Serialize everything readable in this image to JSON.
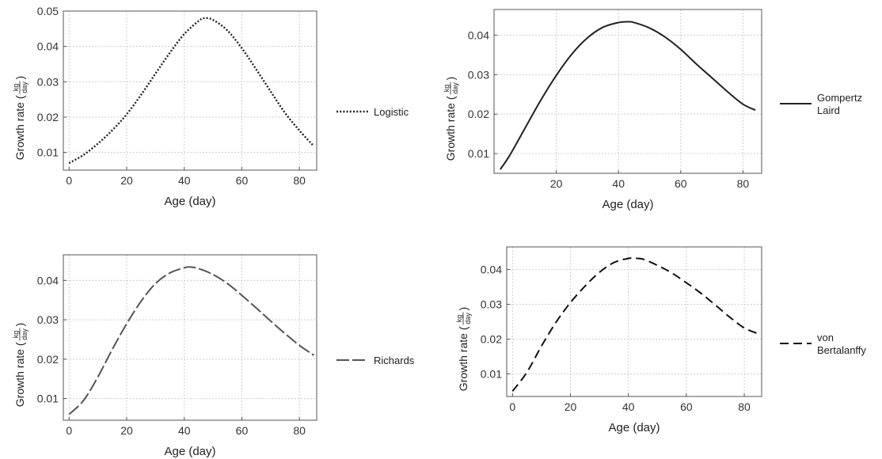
{
  "chart_data": [
    {
      "type": "line",
      "xlabel": "Age (day)",
      "ylabel_prefix": "Growth rate (",
      "ylabel_num": "kg",
      "ylabel_den": "day",
      "ylabel_suffix": ")",
      "xlim": [
        -2,
        86
      ],
      "ylim": [
        0.005,
        0.05
      ],
      "xticks": [
        0,
        20,
        40,
        60,
        80
      ],
      "yticks": [
        0.01,
        0.02,
        0.03,
        0.04,
        0.05
      ],
      "grid": true,
      "legend_position": "right",
      "series": [
        {
          "name": "Logistic",
          "line_style": "dotted",
          "color": "#222222",
          "x": [
            0,
            5,
            10,
            15,
            20,
            25,
            30,
            35,
            40,
            45,
            47,
            50,
            55,
            60,
            65,
            70,
            75,
            80,
            85
          ],
          "y": [
            0.007,
            0.0093,
            0.0125,
            0.0163,
            0.0208,
            0.0263,
            0.0323,
            0.0382,
            0.0435,
            0.0472,
            0.048,
            0.0475,
            0.0445,
            0.0395,
            0.0335,
            0.0273,
            0.0212,
            0.0162,
            0.0118
          ]
        }
      ]
    },
    {
      "type": "line",
      "xlabel": "Age (day)",
      "ylabel_prefix": "Growth rate (",
      "ylabel_num": "kg",
      "ylabel_den": "day",
      "ylabel_suffix": ")",
      "xlim": [
        0,
        86
      ],
      "ylim": [
        0.005,
        0.0465
      ],
      "xticks": [
        20,
        40,
        60,
        80
      ],
      "yticks": [
        0.01,
        0.02,
        0.03,
        0.04
      ],
      "grid": true,
      "legend_position": "right",
      "series": [
        {
          "name": "Gompertz Laird",
          "name_lines": [
            "Gompertz",
            "Laird"
          ],
          "line_style": "solid",
          "color": "#222222",
          "x": [
            2,
            5,
            10,
            15,
            20,
            25,
            30,
            35,
            40,
            43,
            45,
            50,
            55,
            60,
            65,
            70,
            75,
            80,
            84
          ],
          "y": [
            0.006,
            0.0095,
            0.0165,
            0.0235,
            0.0298,
            0.0352,
            0.0393,
            0.042,
            0.0432,
            0.0434,
            0.0432,
            0.0418,
            0.0395,
            0.0364,
            0.0327,
            0.0292,
            0.0257,
            0.0225,
            0.021
          ]
        }
      ]
    },
    {
      "type": "line",
      "xlabel": "Age (day)",
      "ylabel_prefix": "Growth rate (",
      "ylabel_num": "kg",
      "ylabel_den": "day",
      "ylabel_suffix": ")",
      "xlim": [
        -2,
        86
      ],
      "ylim": [
        0.0045,
        0.0465
      ],
      "xticks": [
        0,
        20,
        40,
        60,
        80
      ],
      "yticks": [
        0.01,
        0.02,
        0.03,
        0.04
      ],
      "grid": true,
      "legend_position": "right",
      "series": [
        {
          "name": "Richards",
          "line_style": "long-dash",
          "color": "#555555",
          "x": [
            0,
            5,
            10,
            15,
            20,
            25,
            30,
            35,
            40,
            42,
            45,
            50,
            55,
            60,
            65,
            70,
            75,
            80,
            85
          ],
          "y": [
            0.006,
            0.0095,
            0.0155,
            0.0225,
            0.029,
            0.0347,
            0.0392,
            0.0419,
            0.0432,
            0.0434,
            0.043,
            0.0415,
            0.0392,
            0.0362,
            0.033,
            0.0297,
            0.0265,
            0.0235,
            0.021
          ]
        }
      ]
    },
    {
      "type": "line",
      "xlabel": "Age (day)",
      "ylabel_prefix": "Growth rate (",
      "ylabel_num": "kg",
      "ylabel_den": "day",
      "ylabel_suffix": ")",
      "xlim": [
        -2,
        86
      ],
      "ylim": [
        0.0035,
        0.0465
      ],
      "xticks": [
        0,
        20,
        40,
        60,
        80
      ],
      "yticks": [
        0.01,
        0.02,
        0.03,
        0.04
      ],
      "grid": true,
      "legend_position": "right",
      "series": [
        {
          "name": "von Bertalanffy",
          "name_lines": [
            "von",
            "Bertalanffy"
          ],
          "line_style": "dashed",
          "color": "#111111",
          "x": [
            0,
            5,
            10,
            15,
            20,
            25,
            30,
            35,
            40,
            42,
            45,
            50,
            55,
            60,
            65,
            70,
            75,
            80,
            85
          ],
          "y": [
            0.005,
            0.0105,
            0.018,
            0.0248,
            0.0305,
            0.0352,
            0.0392,
            0.042,
            0.0432,
            0.0432,
            0.043,
            0.0412,
            0.039,
            0.0362,
            0.0332,
            0.0298,
            0.0263,
            0.0232,
            0.0215
          ]
        }
      ]
    }
  ]
}
